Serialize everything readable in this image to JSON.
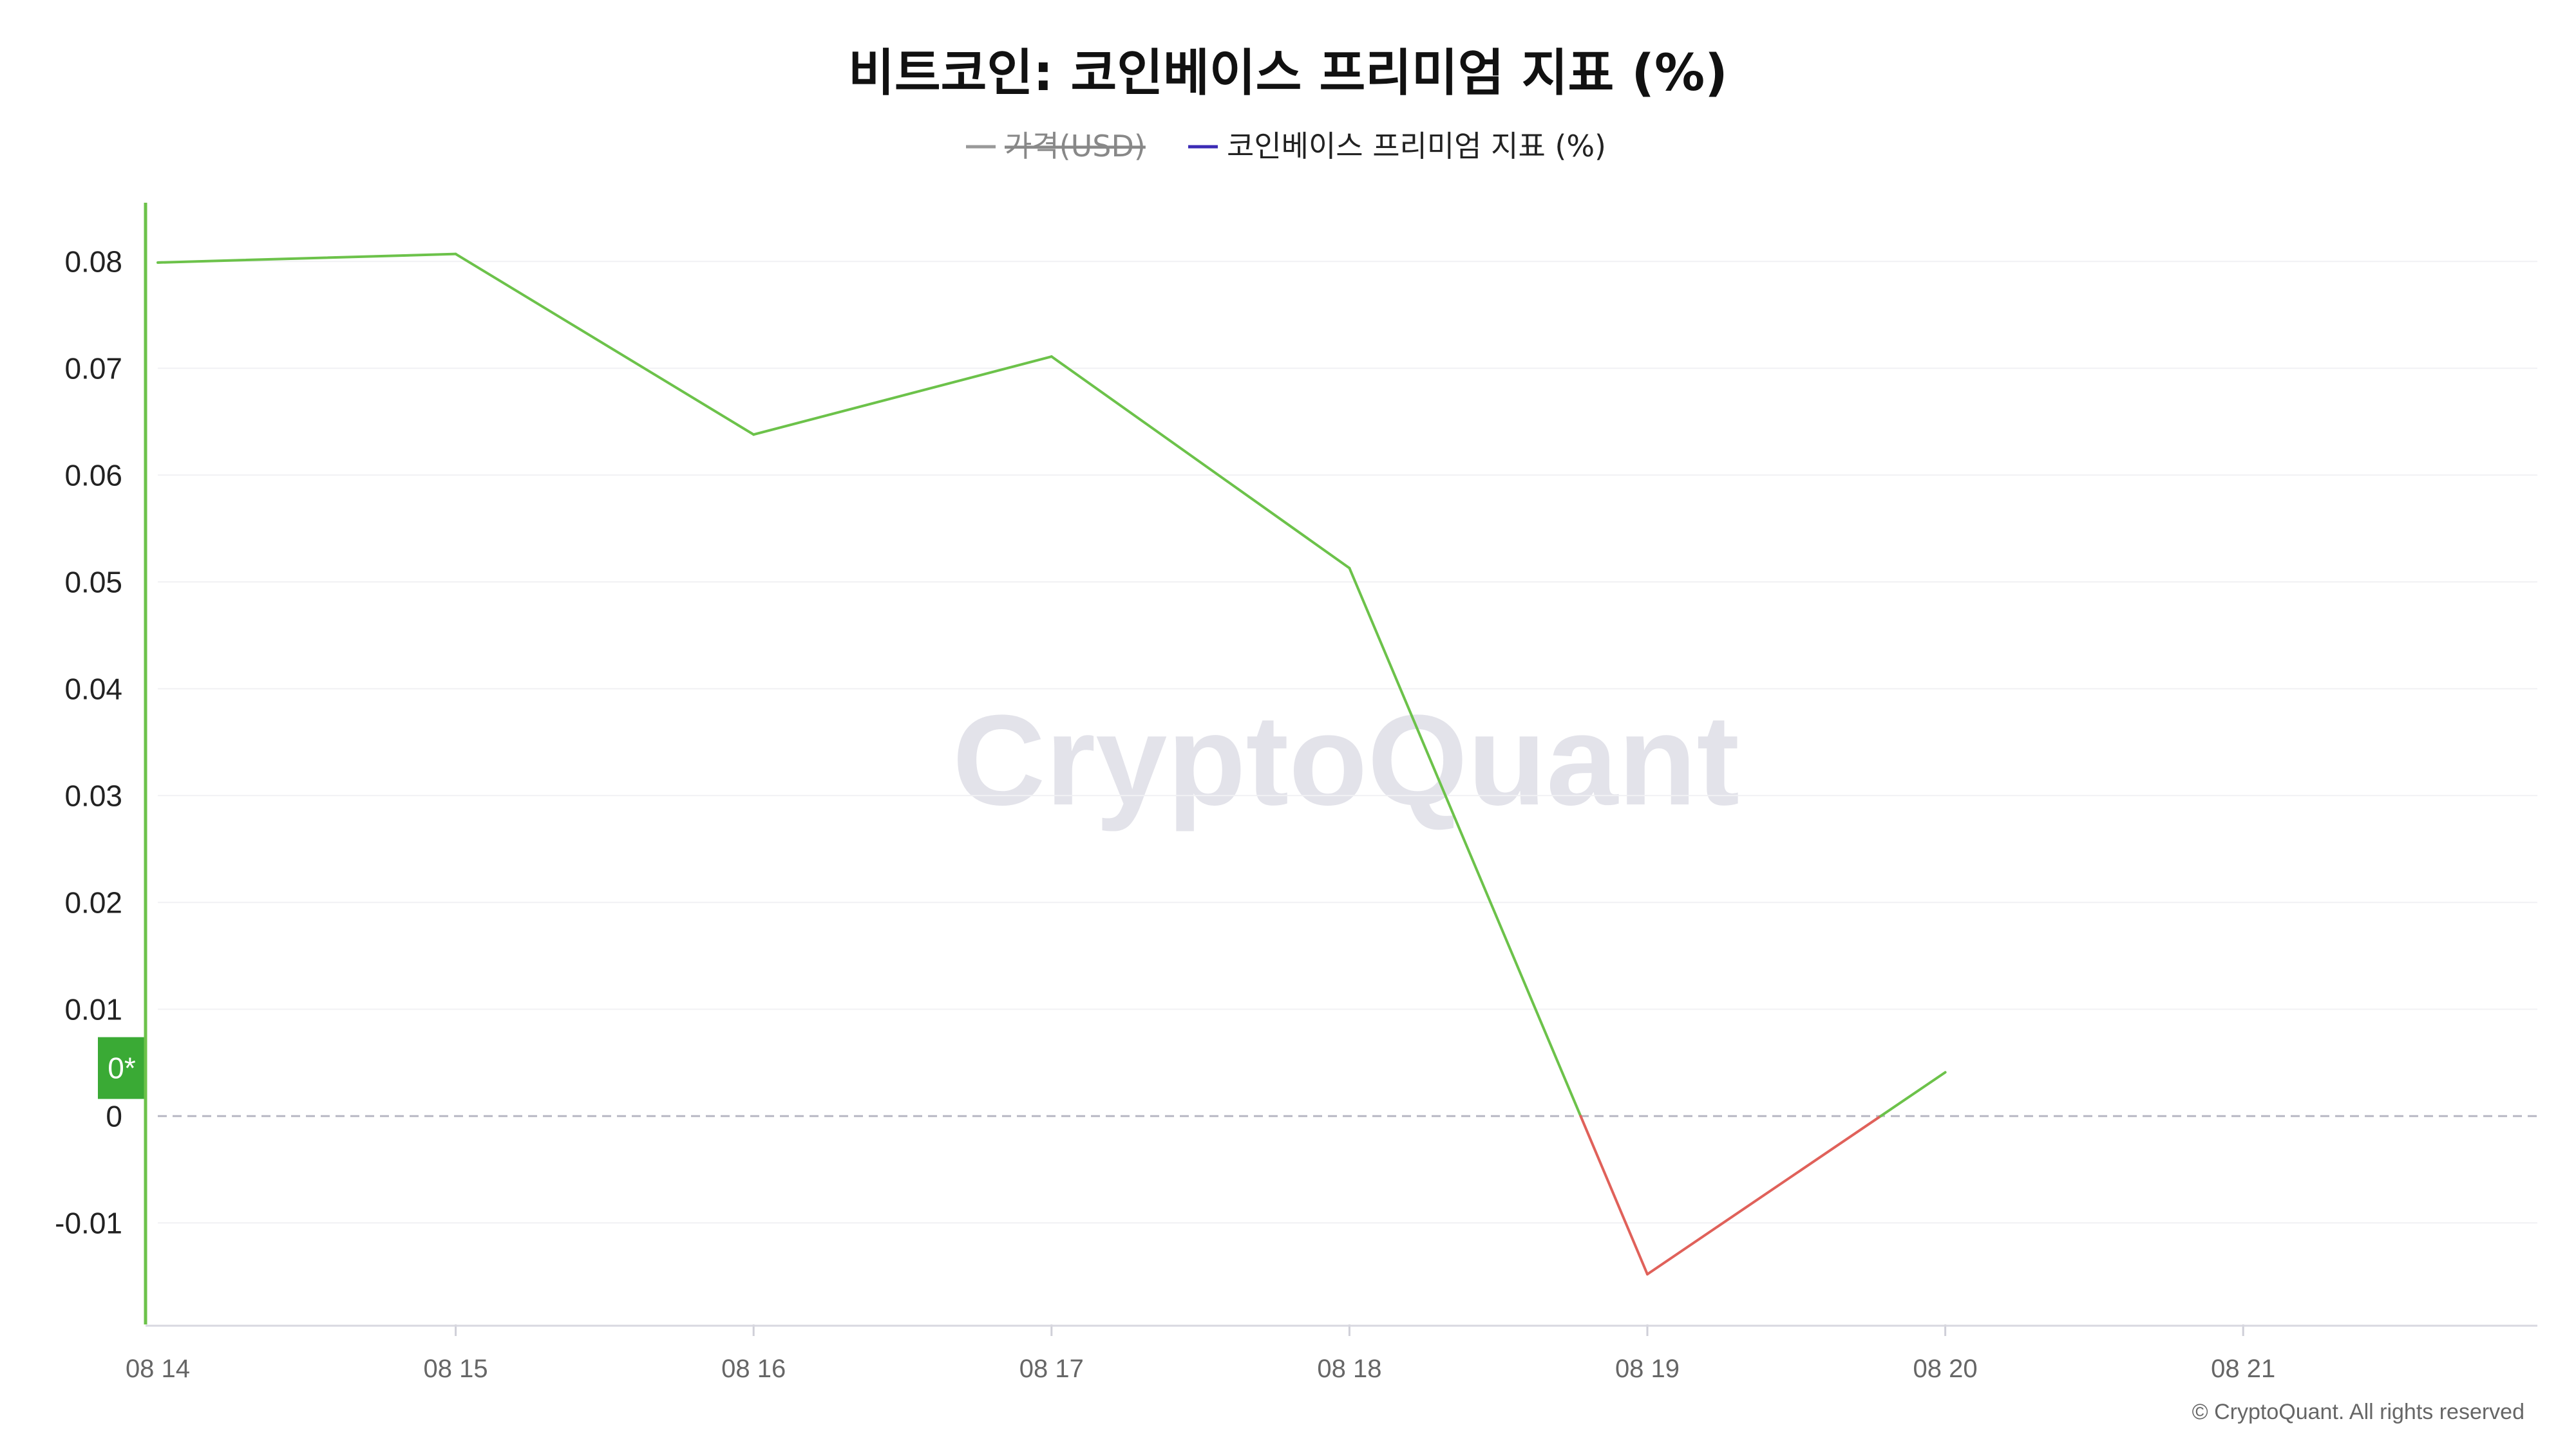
{
  "chart_data": {
    "type": "line",
    "title": "비트코인: 코인베이스 프리미엄 지표 (%)",
    "legend": {
      "placement": "top-center",
      "items": [
        {
          "label": "가격(USD)",
          "color": "#999999",
          "hidden": true
        },
        {
          "label": "코인베이스 프리미엄 지표 (%)",
          "color": "#3b2bb5",
          "hidden": false
        }
      ]
    },
    "x": [
      "08 14",
      "08 15",
      "08 16",
      "08 17",
      "08 18",
      "08 19",
      "08 20"
    ],
    "x_ticks": [
      "08 14",
      "08 15",
      "08 16",
      "08 17",
      "08 18",
      "08 19",
      "08 20",
      "08 21"
    ],
    "series": [
      {
        "name": "코인베이스 프리미엄 지표 (%)",
        "values": [
          0.0799,
          0.0807,
          0.0638,
          0.0711,
          0.0513,
          -0.0148,
          0.0041
        ],
        "positive_color": "#6cc24a",
        "negative_color": "#e0615a"
      }
    ],
    "y_ticks": [
      0.08,
      0.07,
      0.06,
      0.05,
      0.04,
      0.03,
      0.02,
      0.01,
      0,
      -0.01
    ],
    "y_tick_labels": [
      "0.08",
      "0.07",
      "0.06",
      "0.05",
      "0.04",
      "0.03",
      "0.02",
      "0.01",
      "0",
      "-0.01"
    ],
    "ylim": [
      -0.0195,
      0.0855
    ],
    "grid": true,
    "zero_line": "dashed",
    "y_badge": {
      "label": "0*",
      "value": 0.0045,
      "color": "#3aaa35"
    },
    "axis_color": "#6cc24a",
    "watermark": "CryptoQuant",
    "copyright": "© CryptoQuant. All rights reserved"
  }
}
